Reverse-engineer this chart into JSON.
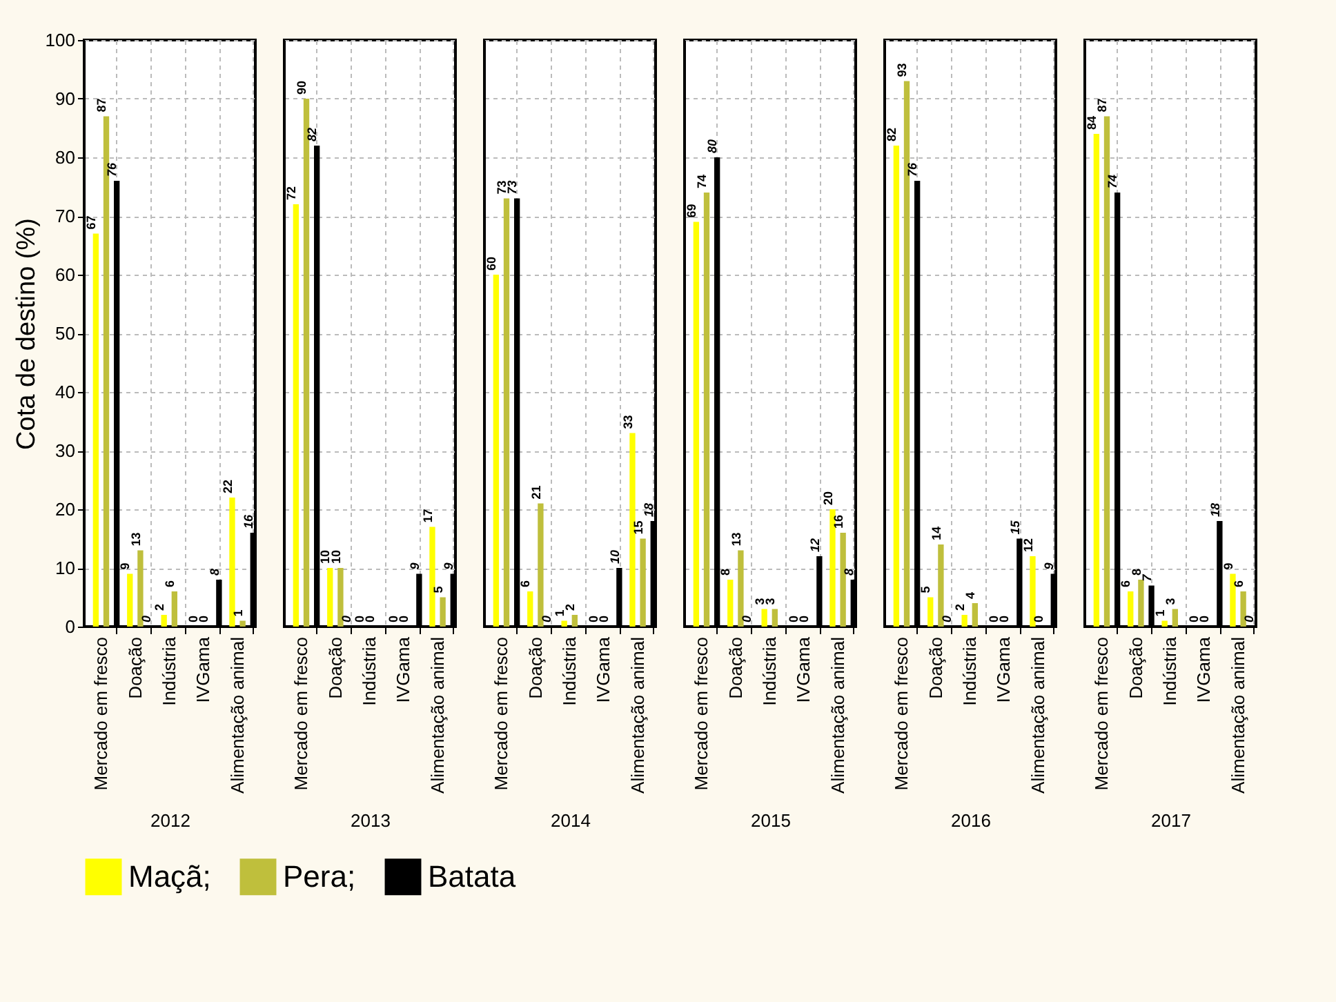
{
  "chart_data": [
    {
      "type": "bar",
      "xlabel": "2012",
      "ylabel": "Cota de destino (%)",
      "categories": [
        "Mercado em fresco",
        "Doação",
        "Indústria",
        "IVGama",
        "Alimentação animal"
      ],
      "ylim": [
        0,
        100
      ],
      "yticks": [
        0,
        10,
        20,
        30,
        40,
        50,
        60,
        70,
        80,
        90,
        100
      ],
      "grid": true,
      "legend": "bottom",
      "data_labels": true,
      "series": [
        {
          "name": "Maçã;",
          "color": "#ffff00",
          "values": [
            67,
            9,
            2,
            0,
            22
          ]
        },
        {
          "name": "Pera;",
          "color": "#bfbf3c",
          "values": [
            87,
            13,
            6,
            0,
            1
          ]
        },
        {
          "name": "Batata",
          "color": "#000000",
          "values": [
            76,
            0,
            null,
            8,
            16
          ]
        }
      ]
    },
    {
      "type": "bar",
      "xlabel": "2013",
      "categories": [
        "Mercado em fresco",
        "Doação",
        "Indústria",
        "IVGama",
        "Alimentação animal"
      ],
      "ylim": [
        0,
        100
      ],
      "yticks": [
        0,
        10,
        20,
        30,
        40,
        50,
        60,
        70,
        80,
        90,
        100
      ],
      "grid": true,
      "legend": "bottom",
      "data_labels": true,
      "tick_labels": "x",
      "series": [
        {
          "name": "Maçã;",
          "color": "#ffff00",
          "values": [
            72,
            10,
            0,
            0,
            17
          ]
        },
        {
          "name": "Pera;",
          "color": "#bfbf3c",
          "values": [
            90,
            10,
            0,
            0,
            5
          ]
        },
        {
          "name": "Batata",
          "color": "#000000",
          "values": [
            82,
            0,
            null,
            9,
            9
          ]
        }
      ]
    },
    {
      "type": "bar",
      "xlabel": "2014",
      "categories": [
        "Mercado em fresco",
        "Doação",
        "Indústria",
        "IVGama",
        "Alimentação animal"
      ],
      "ylim": [
        0,
        100
      ],
      "yticks": [
        0,
        10,
        20,
        30,
        40,
        50,
        60,
        70,
        80,
        90,
        100
      ],
      "grid": true,
      "legend": "bottom",
      "data_labels": true,
      "tick_labels": "x",
      "series": [
        {
          "name": "Maçã;",
          "color": "#ffff00",
          "values": [
            60,
            6,
            1,
            0,
            33
          ]
        },
        {
          "name": "Pera;",
          "color": "#bfbf3c",
          "values": [
            73,
            21,
            2,
            0,
            15
          ]
        },
        {
          "name": "Batata",
          "color": "#000000",
          "values": [
            73,
            0,
            null,
            10,
            18
          ]
        }
      ]
    },
    {
      "type": "bar",
      "xlabel": "2015",
      "categories": [
        "Mercado em fresco",
        "Doação",
        "Indústria",
        "IVGama",
        "Alimentação animal"
      ],
      "ylim": [
        0,
        100
      ],
      "yticks": [
        0,
        10,
        20,
        30,
        40,
        50,
        60,
        70,
        80,
        90,
        100
      ],
      "grid": true,
      "legend": "bottom",
      "data_labels": true,
      "tick_labels": "x",
      "series": [
        {
          "name": "Maçã;",
          "color": "#ffff00",
          "values": [
            69,
            8,
            3,
            0,
            20
          ]
        },
        {
          "name": "Pera;",
          "color": "#bfbf3c",
          "values": [
            74,
            13,
            3,
            0,
            16
          ]
        },
        {
          "name": "Batata",
          "color": "#000000",
          "values": [
            80,
            0,
            null,
            12,
            8
          ]
        }
      ]
    },
    {
      "type": "bar",
      "xlabel": "2016",
      "categories": [
        "Mercado em fresco",
        "Doação",
        "Indústria",
        "IVGama",
        "Alimentação animal"
      ],
      "ylim": [
        0,
        100
      ],
      "yticks": [
        0,
        10,
        20,
        30,
        40,
        50,
        60,
        70,
        80,
        90,
        100
      ],
      "grid": true,
      "legend": "bottom",
      "data_labels": true,
      "tick_labels": "x",
      "series": [
        {
          "name": "Maçã;",
          "color": "#ffff00",
          "values": [
            82,
            5,
            2,
            0,
            12
          ]
        },
        {
          "name": "Pera;",
          "color": "#bfbf3c",
          "values": [
            93,
            14,
            4,
            0,
            0
          ]
        },
        {
          "name": "Batata",
          "color": "#000000",
          "values": [
            76,
            0,
            null,
            15,
            9
          ]
        }
      ]
    },
    {
      "type": "bar",
      "xlabel": "2017",
      "categories": [
        "Mercado em fresco",
        "Doação",
        "Indústria",
        "IVGama",
        "Alimentação animal"
      ],
      "ylim": [
        0,
        100
      ],
      "yticks": [
        0,
        10,
        20,
        30,
        40,
        50,
        60,
        70,
        80,
        90,
        100
      ],
      "grid": true,
      "legend": "bottom",
      "data_labels": true,
      "tick_labels": "x",
      "series": [
        {
          "name": "Maçã;",
          "color": "#ffff00",
          "values": [
            84,
            6,
            1,
            0,
            9
          ]
        },
        {
          "name": "Pera;",
          "color": "#bfbf3c",
          "values": [
            87,
            8,
            3,
            0,
            6
          ]
        },
        {
          "name": "Batata",
          "color": "#000000",
          "values": [
            74,
            7,
            null,
            18,
            0
          ]
        }
      ]
    }
  ]
}
